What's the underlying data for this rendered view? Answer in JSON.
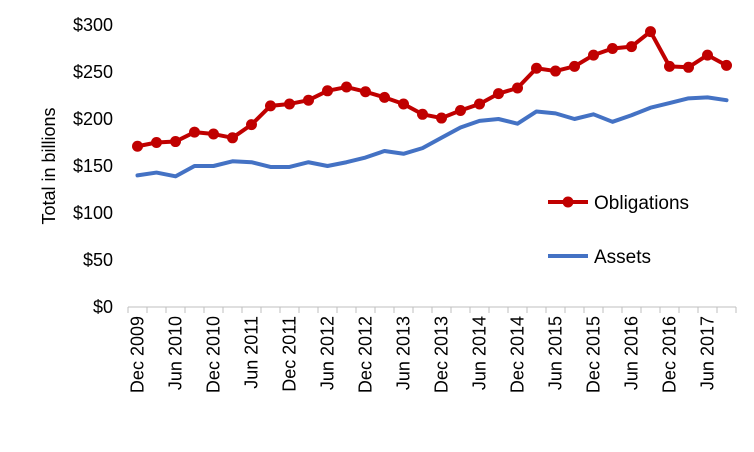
{
  "chart_data": {
    "type": "line",
    "ylabel": "Total in billions",
    "xlabel": "",
    "ylim": [
      0,
      300
    ],
    "y_ticks": [
      "$0",
      "$50",
      "$100",
      "$150",
      "$200",
      "$250",
      "$300"
    ],
    "y_tick_values": [
      0,
      50,
      100,
      150,
      200,
      250,
      300
    ],
    "x_tick_labels": [
      "Dec 2009",
      "Jun 2010",
      "Dec 2010",
      "Jun 2011",
      "Dec 2011",
      "Jun 2012",
      "Dec 2012",
      "Jun 2013",
      "Dec 2013",
      "Jun 2014",
      "Dec 2014",
      "Jun 2015",
      "Dec 2015",
      "Jun 2016",
      "Dec 2016",
      "Jun 2017"
    ],
    "x": [
      "Dec 2009",
      "Mar 2010",
      "Jun 2010",
      "Sep 2010",
      "Dec 2010",
      "Mar 2011",
      "Jun 2011",
      "Sep 2011",
      "Dec 2011",
      "Mar 2012",
      "Jun 2012",
      "Sep 2012",
      "Dec 2012",
      "Mar 2013",
      "Jun 2013",
      "Sep 2013",
      "Dec 2013",
      "Mar 2014",
      "Jun 2014",
      "Sep 2014",
      "Dec 2014",
      "Mar 2015",
      "Jun 2015",
      "Sep 2015",
      "Dec 2015",
      "Mar 2016",
      "Jun 2016",
      "Sep 2016",
      "Dec 2016",
      "Mar 2017",
      "Jun 2017",
      "Sep 2017"
    ],
    "series": [
      {
        "name": "Obligations",
        "color": "#C00000",
        "marker": "circle",
        "values": [
          171,
          175,
          176,
          186,
          184,
          180,
          194,
          214,
          216,
          220,
          230,
          234,
          229,
          223,
          216,
          205,
          201,
          209,
          216,
          227,
          233,
          254,
          251,
          256,
          268,
          275,
          277,
          293,
          256,
          255,
          268,
          257
        ]
      },
      {
        "name": "Assets",
        "color": "#4472C4",
        "marker": "none",
        "values": [
          140,
          143,
          139,
          150,
          150,
          155,
          154,
          149,
          149,
          154,
          150,
          154,
          159,
          166,
          163,
          169,
          180,
          191,
          198,
          200,
          195,
          208,
          206,
          200,
          205,
          197,
          204,
          212,
          217,
          222,
          223,
          220
        ]
      }
    ],
    "grid": false,
    "legend": "right"
  }
}
